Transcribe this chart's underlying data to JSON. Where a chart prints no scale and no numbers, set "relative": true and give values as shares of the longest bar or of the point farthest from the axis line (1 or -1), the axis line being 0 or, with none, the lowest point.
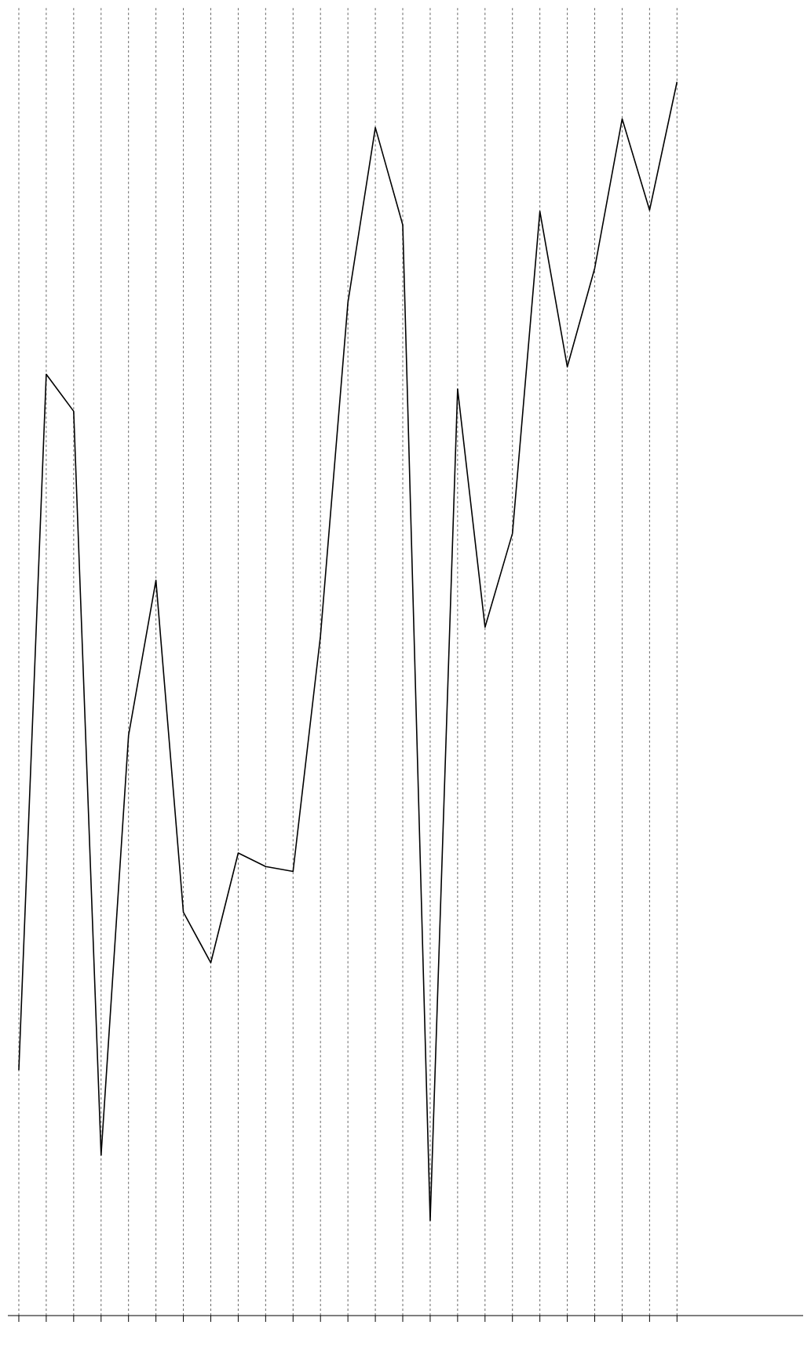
{
  "chart_data": {
    "type": "line",
    "relative": true,
    "grid": true,
    "color": "#000000",
    "categories": [
      null,
      null,
      null,
      null,
      null,
      null,
      null,
      null,
      null,
      null,
      null,
      null,
      null,
      null,
      null,
      null,
      null,
      null,
      null,
      null,
      null,
      null,
      null,
      null,
      null
    ],
    "values": [
      0.199,
      0.763,
      0.733,
      0.13,
      0.47,
      0.596,
      0.327,
      0.286,
      0.375,
      0.364,
      0.36,
      0.551,
      0.821,
      0.963,
      0.884,
      0.077,
      0.751,
      0.558,
      0.634,
      0.895,
      0.769,
      0.849,
      0.97,
      0.896,
      1.0
    ]
  }
}
